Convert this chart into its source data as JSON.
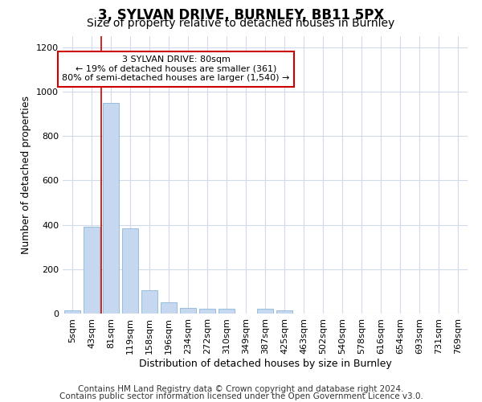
{
  "title_line1": "3, SYLVAN DRIVE, BURNLEY, BB11 5PX",
  "title_line2": "Size of property relative to detached houses in Burnley",
  "xlabel": "Distribution of detached houses by size in Burnley",
  "ylabel": "Number of detached properties",
  "bar_color": "#c5d8f0",
  "bar_edge_color": "#7aadd4",
  "annotation_line_color": "#cc0000",
  "annotation_box_color": "#cc0000",
  "categories": [
    "5sqm",
    "43sqm",
    "81sqm",
    "119sqm",
    "158sqm",
    "196sqm",
    "234sqm",
    "272sqm",
    "310sqm",
    "349sqm",
    "387sqm",
    "425sqm",
    "463sqm",
    "502sqm",
    "540sqm",
    "578sqm",
    "616sqm",
    "654sqm",
    "693sqm",
    "731sqm",
    "769sqm"
  ],
  "values": [
    15,
    390,
    950,
    385,
    105,
    50,
    25,
    20,
    20,
    0,
    20,
    15,
    0,
    0,
    0,
    0,
    0,
    0,
    0,
    0,
    0
  ],
  "ylim": [
    0,
    1250
  ],
  "yticks": [
    0,
    200,
    400,
    600,
    800,
    1000,
    1200
  ],
  "annotation_text": "3 SYLVAN DRIVE: 80sqm\n← 19% of detached houses are smaller (361)\n80% of semi-detached houses are larger (1,540) →",
  "vline_x_index": 2,
  "footer_line1": "Contains HM Land Registry data © Crown copyright and database right 2024.",
  "footer_line2": "Contains public sector information licensed under the Open Government Licence v3.0.",
  "background_color": "#ffffff",
  "plot_bg_color": "#ffffff",
  "grid_color": "#d0daea",
  "title_fontsize": 12,
  "subtitle_fontsize": 10,
  "axis_label_fontsize": 9,
  "tick_fontsize": 8,
  "footer_fontsize": 7.5
}
